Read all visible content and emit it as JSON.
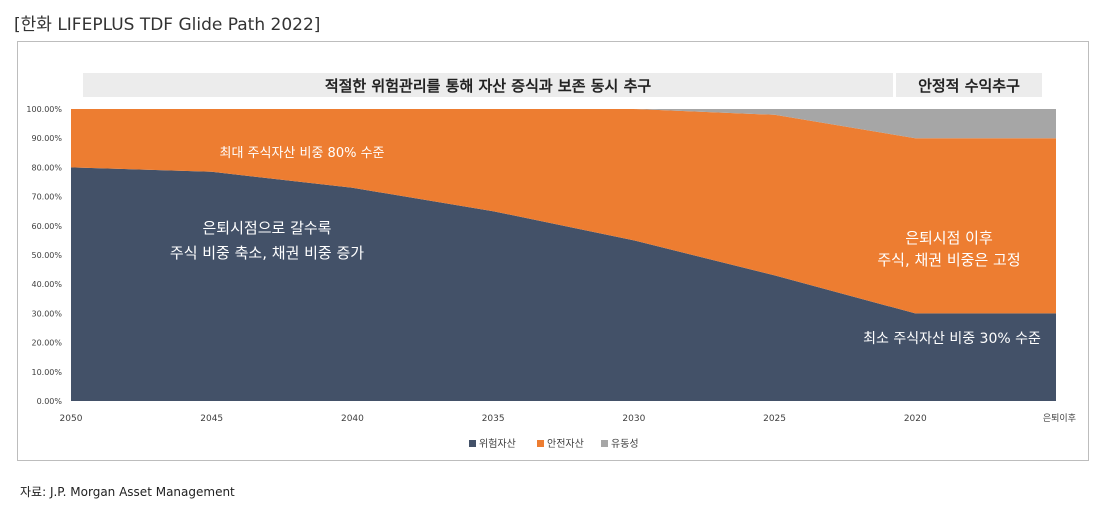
{
  "title": "[한화 LIFEPLUS TDF Glide Path 2022]",
  "banners": {
    "left": "적절한 위험관리를 통해 자산 증식과 보존 동시 추구",
    "right": "안정적 수익추구"
  },
  "colors": {
    "risk": "#435168",
    "safe": "#ED7D31",
    "liquidity": "#A6A6A6",
    "banner_bg": "#ececec"
  },
  "chart_data": {
    "type": "area",
    "stacked": true,
    "categories": [
      "2050",
      "2045",
      "2040",
      "2035",
      "2030",
      "2025",
      "2020",
      "은퇴이후"
    ],
    "y_ticks": [
      "0.00%",
      "10.00%",
      "20.00%",
      "30.00%",
      "40.00%",
      "50.00%",
      "60.00%",
      "70.00%",
      "80.00%",
      "90.00%",
      "100.00%"
    ],
    "ylim": [
      0,
      100
    ],
    "series": [
      {
        "name": "위험자산",
        "values": [
          80,
          78.5,
          73,
          65,
          55,
          43,
          30,
          30
        ]
      },
      {
        "name": "안전자산",
        "values": [
          20,
          21.5,
          27,
          35,
          45,
          55,
          60,
          60
        ]
      },
      {
        "name": "유동성",
        "values": [
          0,
          0,
          0,
          0,
          0,
          2,
          10,
          10
        ]
      }
    ],
    "legend_position": "bottom-center",
    "annotations": {
      "max_equity": "최대 주식자산 비중 80% 수준",
      "glide_line1": "은퇴시점으로 갈수록",
      "glide_line2": "주식 비중 축소, 채권 비중 증가",
      "fixed_line1": "은퇴시점 이후",
      "fixed_line2": "주식, 채권 비중은 고정",
      "min_equity": "최소 주식자산 비중 30% 수준"
    }
  },
  "source": "자료: J.P. Morgan Asset Management"
}
